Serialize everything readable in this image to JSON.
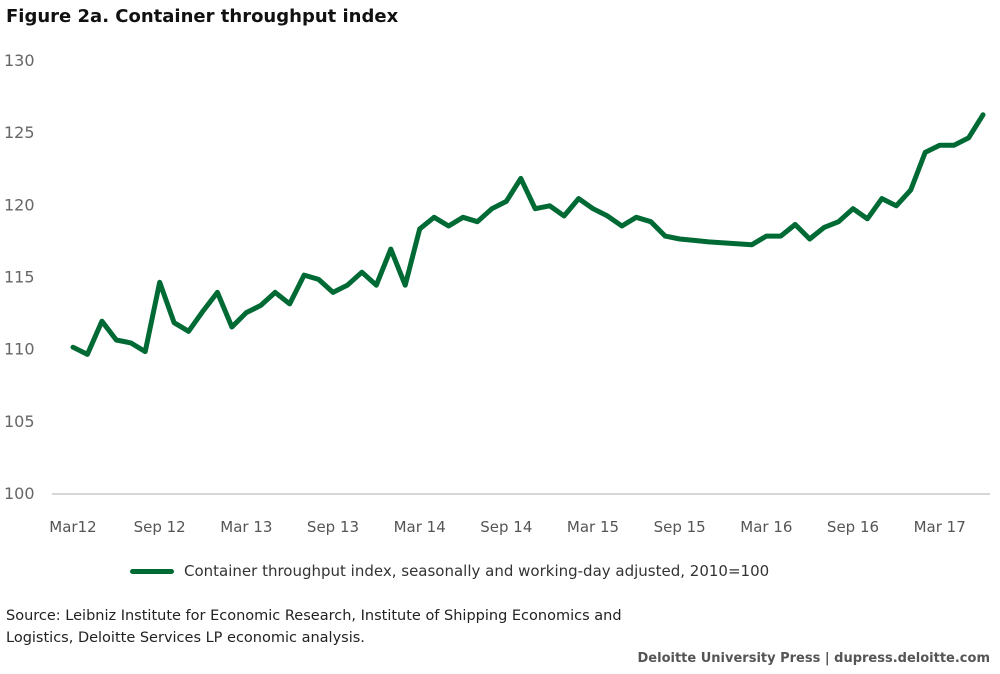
{
  "title": "Figure 2a. Container throughput index",
  "chart_data": {
    "type": "line",
    "ylim": [
      100,
      130
    ],
    "yticks": [
      "100",
      "105",
      "110",
      "115",
      "120",
      "125",
      "130"
    ],
    "xtick_labels": [
      "Mar12",
      "Sep 12",
      "Mar 13",
      "Sep 13",
      "Mar 14",
      "Sep 14",
      "Mar 15",
      "Sep 15",
      "Mar 16",
      "Sep 16",
      "Mar 17"
    ],
    "xtick_months": [
      0,
      6,
      12,
      18,
      24,
      30,
      36,
      42,
      48,
      54,
      60
    ],
    "grid": false,
    "legend": "bottom",
    "series": [
      {
        "name": "Container throughput index, seasonally and working-day adjusted, 2010=100",
        "color": "#006A35",
        "x_months": [
          0,
          1,
          2,
          3,
          4,
          5,
          6,
          7,
          8,
          9,
          10,
          11,
          12,
          13,
          14,
          15,
          16,
          17,
          18,
          19,
          20,
          21,
          22,
          23,
          24,
          25,
          26,
          27,
          28,
          29,
          30,
          31,
          32,
          33,
          34,
          35,
          36,
          37,
          38,
          39,
          40,
          41,
          42,
          43,
          44,
          47,
          48,
          49,
          50,
          51,
          52,
          53,
          54,
          55,
          56,
          57,
          58,
          59,
          60,
          61,
          62,
          63
        ],
        "values": [
          110.1,
          109.6,
          111.9,
          110.6,
          110.4,
          109.8,
          114.6,
          111.8,
          111.2,
          112.6,
          113.9,
          111.5,
          112.5,
          113.0,
          113.9,
          113.1,
          115.1,
          114.8,
          113.9,
          114.4,
          115.3,
          114.4,
          116.9,
          114.4,
          118.3,
          119.1,
          118.5,
          119.1,
          118.8,
          119.7,
          120.2,
          121.8,
          119.7,
          119.9,
          119.2,
          120.4,
          119.7,
          119.2,
          118.5,
          119.1,
          118.8,
          117.8,
          117.6,
          117.5,
          117.4,
          117.2,
          117.8,
          117.8,
          118.6,
          117.6,
          118.4,
          118.8,
          119.7,
          119.0,
          120.4,
          119.9,
          121.0,
          123.6,
          124.1,
          124.1,
          124.6,
          126.2
        ]
      }
    ]
  },
  "source_text": "Source: Leibniz Institute for Economic Research, Institute of Shipping Economics and Logistics, Deloitte Services LP economic analysis.",
  "credit": "Deloitte University Press  |  dupress.deloitte.com"
}
